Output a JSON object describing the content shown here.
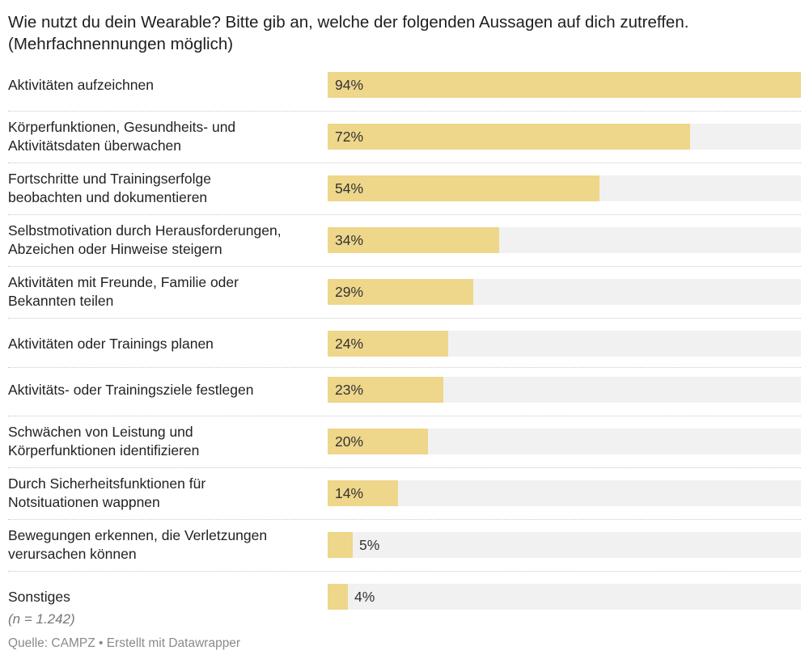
{
  "title": "Wie nutzt du dein Wearable? Bitte gib an, welche der folgenden Aussagen auf dich zutreffen. (Mehrfachnennungen möglich)",
  "chart_data": {
    "type": "bar",
    "orientation": "horizontal",
    "title": "Wie nutzt du dein Wearable? Bitte gib an, welche der folgenden Aussagen auf dich zutreffen. (Mehrfachnennungen möglich)",
    "xlabel": "",
    "ylabel": "",
    "unit": "%",
    "xlim": [
      0,
      94
    ],
    "categories": [
      "Aktivitäten aufzeichnen",
      "Körperfunktionen, Gesundheits- und Aktivitätsdaten überwachen",
      "Fortschritte und Trainingserfolge beobachten und dokumentieren",
      "Selbstmotivation durch Herausforderungen, Abzeichen oder Hinweise steigern",
      "Aktivitäten mit Freunde, Familie oder Bekannten teilen",
      "Aktivitäten oder Trainings planen",
      "Aktivitäts- oder Trainingsziele festlegen",
      "Schwächen von Leistung und Körperfunktionen identifizieren",
      "Durch Sicherheitsfunktionen für Notsituationen wappnen",
      "Bewegungen erkennen, die Verletzungen verursachen können",
      "Sonstiges"
    ],
    "values": [
      94,
      72,
      54,
      34,
      29,
      24,
      23,
      20,
      14,
      5,
      4
    ],
    "value_labels": [
      "94%",
      "72%",
      "54%",
      "34%",
      "29%",
      "24%",
      "23%",
      "20%",
      "14%",
      "5%",
      "4%"
    ],
    "label_lines": [
      [
        "Aktivitäten aufzeichnen"
      ],
      [
        "Körperfunktionen, Gesundheits- und",
        "Aktivitätsdaten überwachen"
      ],
      [
        "Fortschritte und Trainingserfolge",
        "beobachten und dokumentieren"
      ],
      [
        "Selbstmotivation durch Herausforderungen,",
        "Abzeichen oder Hinweise steigern"
      ],
      [
        "Aktivitäten mit Freunde, Familie oder",
        "Bekannten teilen"
      ],
      [
        "Aktivitäten oder Trainings planen"
      ],
      [
        "Aktivitäts- oder Trainingsziele festlegen"
      ],
      [
        "Schwächen von Leistung und",
        "Körperfunktionen identifizieren"
      ],
      [
        "Durch Sicherheitsfunktionen für",
        "Notsituationen wappnen"
      ],
      [
        "Bewegungen erkennen, die Verletzungen",
        "verursachen können"
      ],
      [
        "Sonstiges"
      ]
    ],
    "colors": {
      "bar": "#eed68a",
      "track": "#f1f1f1"
    },
    "legend": "none",
    "grid": false
  },
  "footer": {
    "note": "(n = 1.242)",
    "source": "Quelle: CAMPZ • Erstellt mit Datawrapper"
  }
}
